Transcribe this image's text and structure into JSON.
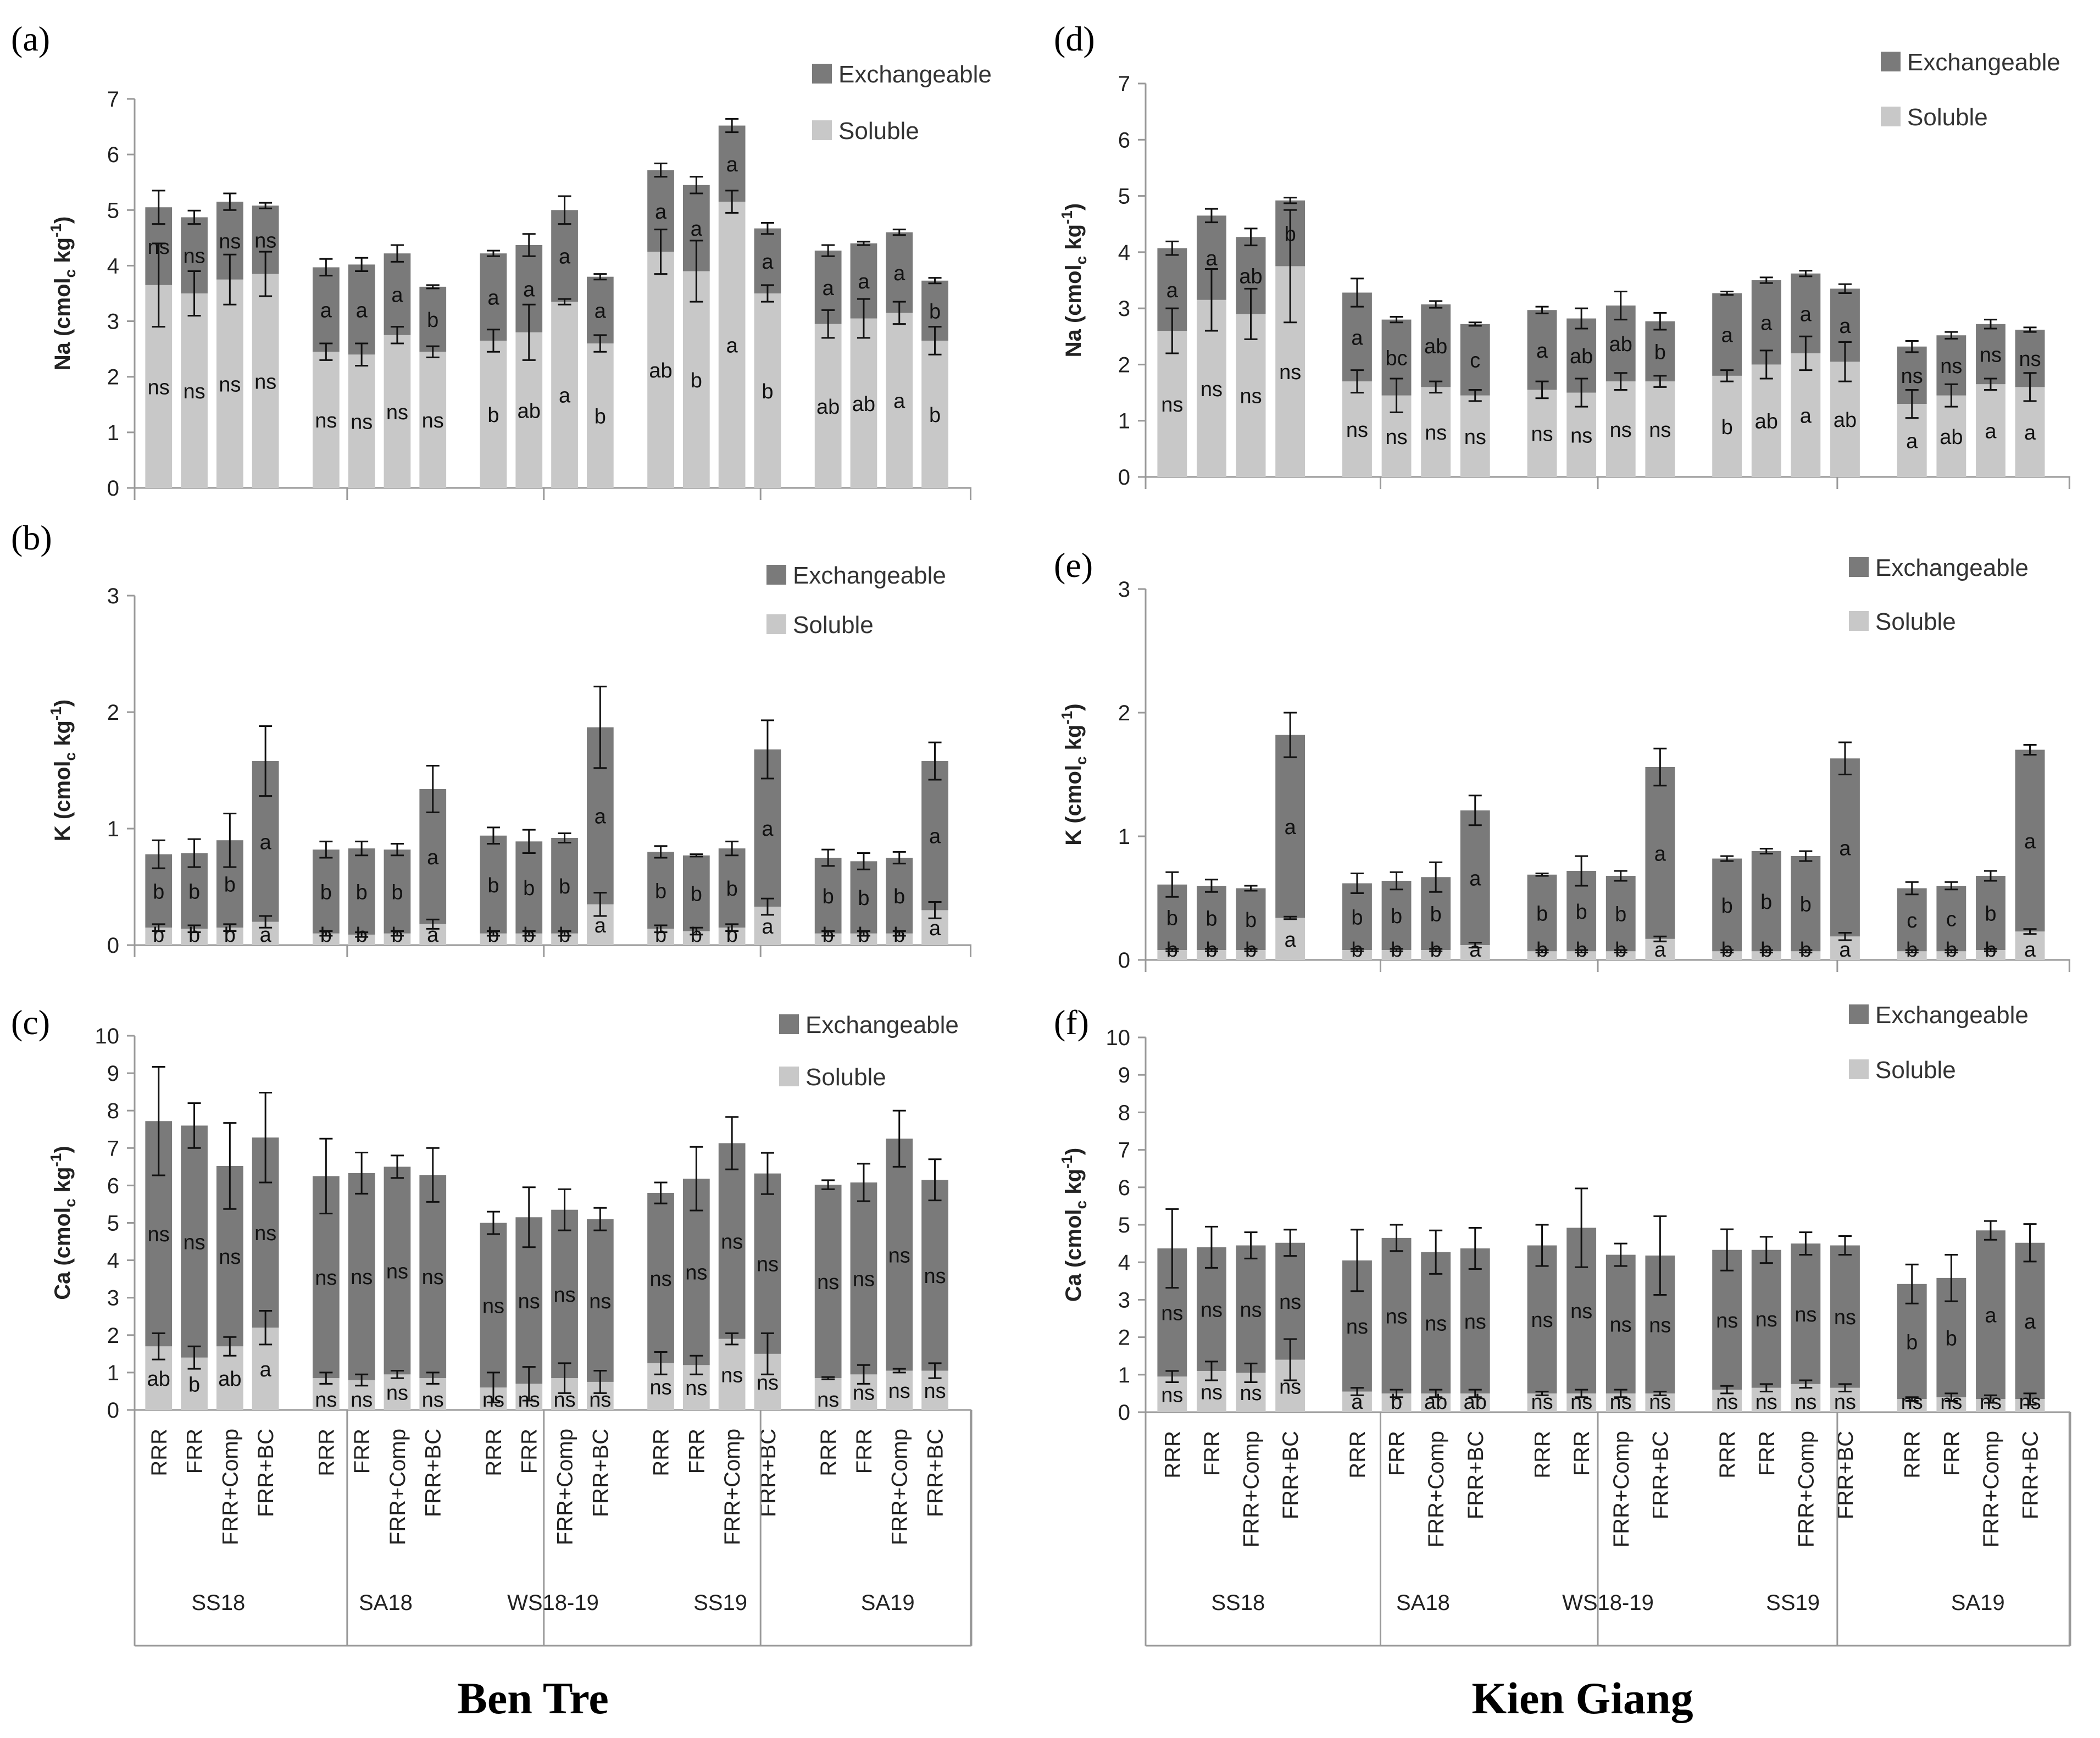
{
  "sites": [
    "Ben Tre",
    "Kien Giang"
  ],
  "legend": {
    "exchangeable": "Exchangeable",
    "soluble": "Soluble"
  },
  "colors": {
    "exchangeable": "#7a7a7a",
    "soluble": "#c8c8c8",
    "axis": "#999999"
  },
  "treatments": [
    "RRR",
    "FRR",
    "FRR+Comp",
    "FRR+BC"
  ],
  "seasons": [
    "SS18",
    "SA18",
    "WS18-19",
    "SS19",
    "SA19"
  ],
  "chart_data": [
    {
      "panel": "(a)",
      "site": "Ben Tre",
      "type": "stacked-bar",
      "ylabel": "Na (cmol",
      "ylabel_sub": "c",
      "ylabel_rest": " kg",
      "ylabel_sup": "-1",
      "ylabel_end": ")",
      "ylim": [
        0,
        7
      ],
      "yticks": [
        0,
        1,
        2,
        3,
        4,
        5,
        6,
        7
      ],
      "soluble": [
        3.65,
        3.5,
        3.75,
        3.85,
        2.45,
        2.4,
        2.75,
        2.45,
        2.65,
        2.8,
        3.35,
        2.6,
        4.25,
        3.9,
        5.15,
        3.5,
        2.95,
        3.05,
        3.15,
        2.65
      ],
      "soluble_err": [
        0.75,
        0.4,
        0.45,
        0.4,
        0.15,
        0.2,
        0.15,
        0.1,
        0.2,
        0.5,
        0.05,
        0.15,
        0.4,
        0.55,
        0.2,
        0.15,
        0.25,
        0.35,
        0.2,
        0.25
      ],
      "total": [
        5.05,
        4.87,
        5.15,
        5.08,
        3.97,
        4.02,
        4.22,
        3.62,
        4.22,
        4.37,
        5.0,
        3.8,
        5.72,
        5.45,
        6.52,
        4.67,
        4.27,
        4.4,
        4.6,
        3.73
      ],
      "total_err": [
        0.3,
        0.12,
        0.15,
        0.05,
        0.15,
        0.12,
        0.15,
        0.03,
        0.05,
        0.2,
        0.25,
        0.05,
        0.12,
        0.15,
        0.12,
        0.1,
        0.1,
        0.03,
        0.05,
        0.05
      ],
      "exch_sig": [
        "ns",
        "ns",
        "ns",
        "ns",
        "a",
        "a",
        "a",
        "b",
        "a",
        "a",
        "a",
        "a",
        "a",
        "a",
        "a",
        "a",
        "a",
        "a",
        "a",
        "b"
      ],
      "sol_sig": [
        "ns",
        "ns",
        "ns",
        "ns",
        "ns",
        "ns",
        "ns",
        "ns",
        "b",
        "ab",
        "a",
        "b",
        "ab",
        "b",
        "a",
        "b",
        "ab",
        "ab",
        "a",
        "b"
      ]
    },
    {
      "panel": "(b)",
      "site": "Ben Tre",
      "type": "stacked-bar",
      "ylabel": "K (cmol",
      "ylabel_sub": "c",
      "ylabel_rest": " kg",
      "ylabel_sup": "-1",
      "ylabel_end": ")",
      "ylim": [
        0,
        3
      ],
      "yticks": [
        0,
        1,
        2,
        3
      ],
      "soluble": [
        0.15,
        0.14,
        0.15,
        0.2,
        0.1,
        0.09,
        0.1,
        0.18,
        0.1,
        0.1,
        0.1,
        0.35,
        0.14,
        0.12,
        0.15,
        0.33,
        0.1,
        0.1,
        0.1,
        0.3
      ],
      "soluble_err": [
        0.03,
        0.03,
        0.03,
        0.05,
        0.02,
        0.02,
        0.02,
        0.04,
        0.02,
        0.02,
        0.02,
        0.1,
        0.03,
        0.03,
        0.03,
        0.07,
        0.02,
        0.02,
        0.02,
        0.07
      ],
      "total": [
        0.78,
        0.79,
        0.9,
        1.58,
        0.82,
        0.83,
        0.82,
        1.34,
        0.94,
        0.89,
        0.92,
        1.87,
        0.8,
        0.77,
        0.83,
        1.68,
        0.75,
        0.72,
        0.75,
        1.58
      ],
      "total_err": [
        0.12,
        0.12,
        0.23,
        0.3,
        0.07,
        0.06,
        0.05,
        0.2,
        0.07,
        0.1,
        0.04,
        0.35,
        0.05,
        0.01,
        0.06,
        0.25,
        0.07,
        0.07,
        0.05,
        0.16
      ],
      "exch_sig": [
        "b",
        "b",
        "b",
        "a",
        "b",
        "b",
        "b",
        "a",
        "b",
        "b",
        "b",
        "a",
        "b",
        "b",
        "b",
        "a",
        "b",
        "b",
        "b",
        "a"
      ],
      "sol_sig": [
        "b",
        "b",
        "b",
        "a",
        "b",
        "b",
        "b",
        "a",
        "b",
        "b",
        "b",
        "a",
        "b",
        "b",
        "b",
        "a",
        "b",
        "b",
        "b",
        "a"
      ]
    },
    {
      "panel": "(c)",
      "site": "Ben Tre",
      "type": "stacked-bar",
      "ylabel": "Ca (cmol",
      "ylabel_sub": "c",
      "ylabel_rest": " kg",
      "ylabel_sup": "-1",
      "ylabel_end": ")",
      "ylim": [
        0,
        10
      ],
      "yticks": [
        0,
        1,
        2,
        3,
        4,
        5,
        6,
        7,
        8,
        9,
        10
      ],
      "soluble": [
        1.7,
        1.4,
        1.7,
        2.2,
        0.85,
        0.8,
        0.95,
        0.85,
        0.6,
        0.7,
        0.85,
        0.75,
        1.25,
        1.2,
        1.9,
        1.5,
        0.85,
        0.95,
        1.05,
        1.05
      ],
      "soluble_err": [
        0.35,
        0.3,
        0.25,
        0.45,
        0.15,
        0.15,
        0.1,
        0.15,
        0.4,
        0.45,
        0.4,
        0.3,
        0.3,
        0.25,
        0.15,
        0.55,
        0.03,
        0.25,
        0.05,
        0.2
      ],
      "total": [
        7.72,
        7.6,
        6.52,
        7.28,
        6.25,
        6.33,
        6.5,
        6.28,
        5.0,
        5.15,
        5.35,
        5.1,
        5.8,
        6.18,
        7.13,
        6.32,
        6.02,
        6.08,
        7.25,
        6.15
      ],
      "total_err": [
        1.45,
        0.6,
        1.15,
        1.2,
        1.0,
        0.55,
        0.3,
        0.72,
        0.3,
        0.8,
        0.55,
        0.3,
        0.28,
        0.85,
        0.7,
        0.55,
        0.12,
        0.5,
        0.75,
        0.55
      ],
      "exch_sig": [
        "ns",
        "ns",
        "ns",
        "ns",
        "ns",
        "ns",
        "ns",
        "ns",
        "ns",
        "ns",
        "ns",
        "ns",
        "ns",
        "ns",
        "ns",
        "ns",
        "ns",
        "ns",
        "ns",
        "ns"
      ],
      "sol_sig": [
        "ab",
        "b",
        "ab",
        "a",
        "ns",
        "ns",
        "ns",
        "ns",
        "ns",
        "ns",
        "ns",
        "ns",
        "ns",
        "ns",
        "ns",
        "ns",
        "ns",
        "ns",
        "ns",
        "ns"
      ]
    },
    {
      "panel": "(d)",
      "site": "Kien Giang",
      "type": "stacked-bar",
      "ylabel": "Na (cmol",
      "ylabel_sub": "c",
      "ylabel_rest": " kg",
      "ylabel_sup": "-1",
      "ylabel_end": ")",
      "ylim": [
        0,
        7
      ],
      "yticks": [
        0,
        1,
        2,
        3,
        4,
        5,
        6,
        7
      ],
      "soluble": [
        2.6,
        3.15,
        2.9,
        3.75,
        1.7,
        1.45,
        1.6,
        1.45,
        1.55,
        1.5,
        1.7,
        1.7,
        1.8,
        2.0,
        2.2,
        2.05,
        1.3,
        1.45,
        1.65,
        1.6
      ],
      "soluble_err": [
        0.4,
        0.55,
        0.45,
        1.0,
        0.2,
        0.3,
        0.1,
        0.1,
        0.15,
        0.25,
        0.15,
        0.1,
        0.1,
        0.25,
        0.3,
        0.35,
        0.25,
        0.2,
        0.1,
        0.25
      ],
      "total": [
        4.07,
        4.65,
        4.27,
        4.92,
        3.28,
        2.8,
        3.07,
        2.72,
        2.97,
        2.82,
        3.05,
        2.77,
        3.27,
        3.5,
        3.62,
        3.35,
        2.32,
        2.52,
        2.72,
        2.62
      ],
      "total_err": [
        0.12,
        0.12,
        0.15,
        0.05,
        0.25,
        0.05,
        0.06,
        0.03,
        0.06,
        0.18,
        0.25,
        0.15,
        0.03,
        0.05,
        0.05,
        0.08,
        0.1,
        0.06,
        0.08,
        0.04
      ],
      "exch_sig": [
        "a",
        "a",
        "ab",
        "b",
        "a",
        "bc",
        "ab",
        "c",
        "a",
        "ab",
        "ab",
        "b",
        "a",
        "a",
        "a",
        "a",
        "ns",
        "ns",
        "ns",
        "ns"
      ],
      "sol_sig": [
        "ns",
        "ns",
        "ns",
        "ns",
        "ns",
        "ns",
        "ns",
        "ns",
        "ns",
        "ns",
        "ns",
        "ns",
        "b",
        "ab",
        "a",
        "ab",
        "a",
        "ab",
        "a",
        "a"
      ]
    },
    {
      "panel": "(e)",
      "site": "Kien Giang",
      "type": "stacked-bar",
      "ylabel": "K (cmol",
      "ylabel_sub": "c",
      "ylabel_rest": " kg",
      "ylabel_sup": "-1",
      "ylabel_end": ")",
      "ylim": [
        0,
        3
      ],
      "yticks": [
        0,
        1,
        2,
        3
      ],
      "soluble": [
        0.08,
        0.08,
        0.08,
        0.34,
        0.08,
        0.08,
        0.08,
        0.12,
        0.07,
        0.07,
        0.07,
        0.17,
        0.07,
        0.07,
        0.07,
        0.19,
        0.07,
        0.07,
        0.08,
        0.23
      ],
      "soluble_err": [
        0.01,
        0.01,
        0.01,
        0.01,
        0.01,
        0.01,
        0.01,
        0.02,
        0.01,
        0.01,
        0.01,
        0.02,
        0.01,
        0.01,
        0.01,
        0.03,
        0.01,
        0.01,
        0.01,
        0.02
      ],
      "total": [
        0.61,
        0.6,
        0.58,
        1.82,
        0.62,
        0.64,
        0.67,
        1.21,
        0.69,
        0.72,
        0.68,
        1.56,
        0.82,
        0.88,
        0.84,
        1.63,
        0.58,
        0.6,
        0.68,
        1.7
      ],
      "total_err": [
        0.1,
        0.05,
        0.02,
        0.18,
        0.08,
        0.07,
        0.12,
        0.12,
        0.01,
        0.12,
        0.04,
        0.15,
        0.02,
        0.02,
        0.04,
        0.13,
        0.05,
        0.03,
        0.04,
        0.04
      ],
      "exch_sig": [
        "b",
        "b",
        "b",
        "a",
        "b",
        "b",
        "b",
        "a",
        "b",
        "b",
        "b",
        "a",
        "b",
        "b",
        "b",
        "a",
        "c",
        "c",
        "b",
        "a"
      ],
      "sol_sig": [
        "b",
        "b",
        "b",
        "a",
        "b",
        "b",
        "b",
        "a",
        "b",
        "b",
        "b",
        "a",
        "b",
        "b",
        "b",
        "a",
        "b",
        "b",
        "b",
        "a"
      ]
    },
    {
      "panel": "(f)",
      "site": "Kien Giang",
      "type": "stacked-bar",
      "ylabel": "Ca (cmol",
      "ylabel_sub": "c",
      "ylabel_rest": " kg",
      "ylabel_sup": "-1",
      "ylabel_end": ")",
      "ylim": [
        0,
        10
      ],
      "yticks": [
        0,
        1,
        2,
        3,
        4,
        5,
        6,
        7,
        8,
        9,
        10
      ],
      "soluble": [
        0.95,
        1.1,
        1.05,
        1.4,
        0.55,
        0.5,
        0.5,
        0.5,
        0.5,
        0.5,
        0.5,
        0.5,
        0.6,
        0.65,
        0.75,
        0.65,
        0.35,
        0.4,
        0.35,
        0.35
      ],
      "soluble_err": [
        0.15,
        0.25,
        0.25,
        0.55,
        0.1,
        0.1,
        0.1,
        0.1,
        0.05,
        0.1,
        0.1,
        0.05,
        0.1,
        0.1,
        0.1,
        0.1,
        0.05,
        0.1,
        0.1,
        0.15
      ],
      "total": [
        4.37,
        4.4,
        4.45,
        4.52,
        4.05,
        4.65,
        4.27,
        4.37,
        4.45,
        4.92,
        4.2,
        4.18,
        4.33,
        4.33,
        4.5,
        4.45,
        3.42,
        3.58,
        4.85,
        4.52
      ],
      "total_err": [
        1.05,
        0.55,
        0.35,
        0.35,
        0.82,
        0.35,
        0.58,
        0.55,
        0.55,
        1.05,
        0.3,
        1.05,
        0.55,
        0.35,
        0.3,
        0.25,
        0.52,
        0.62,
        0.25,
        0.5
      ],
      "exch_sig": [
        "ns",
        "ns",
        "ns",
        "ns",
        "ns",
        "ns",
        "ns",
        "ns",
        "ns",
        "ns",
        "ns",
        "ns",
        "ns",
        "ns",
        "ns",
        "ns",
        "b",
        "b",
        "a",
        "a"
      ],
      "sol_sig": [
        "ns",
        "ns",
        "ns",
        "ns",
        "a",
        "b",
        "ab",
        "ab",
        "ns",
        "ns",
        "ns",
        "ns",
        "ns",
        "ns",
        "ns",
        "ns",
        "ns",
        "ns",
        "ns",
        "ns"
      ]
    }
  ]
}
